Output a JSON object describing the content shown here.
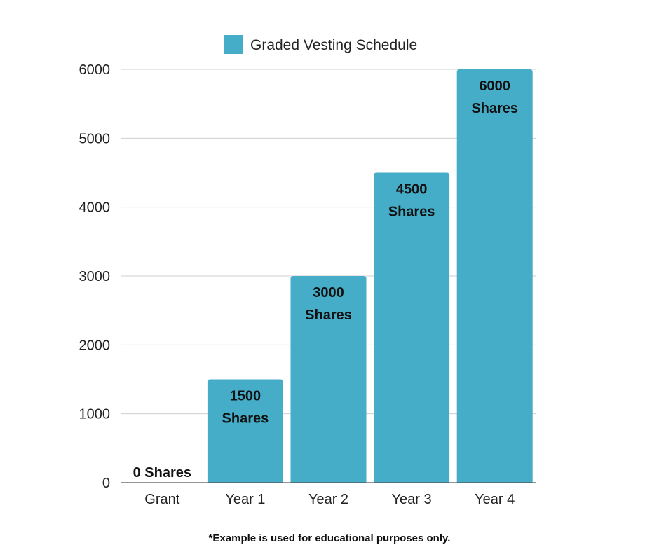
{
  "chart_data": {
    "type": "bar",
    "categories": [
      "Grant",
      "Year 1",
      "Year 2",
      "Year 3",
      "Year 4"
    ],
    "series": [
      {
        "name": "Graded Vesting Schedule",
        "values": [
          0,
          1500,
          3000,
          4500,
          6000
        ],
        "color": "#45adc8"
      }
    ],
    "data_labels": [
      [
        "0 Shares"
      ],
      [
        "1500",
        "Shares"
      ],
      [
        "3000",
        "Shares"
      ],
      [
        "4500",
        "Shares"
      ],
      [
        "6000",
        "Shares"
      ]
    ],
    "ylim": [
      0,
      6000
    ],
    "yticks": [
      0,
      1000,
      2000,
      3000,
      4000,
      5000,
      6000
    ],
    "grid": true,
    "legend_position": "top-center",
    "xlabel": "",
    "ylabel": "",
    "title": ""
  },
  "footnote": "*Example is used for educational purposes only."
}
